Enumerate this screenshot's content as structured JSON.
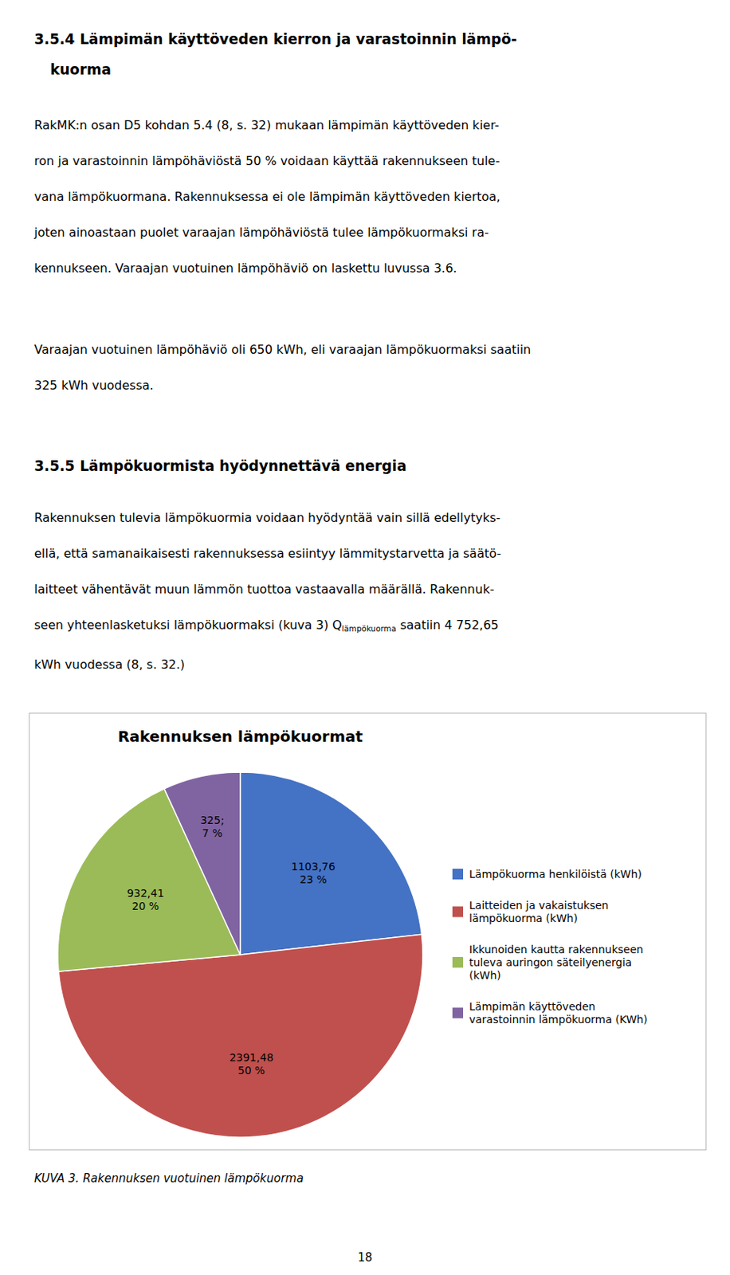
{
  "page_text": [
    {
      "heading": [
        "3.5.4 Lämpimän käyttöveden kierron ja varastoinnin lämpö-",
        "kuorma"
      ]
    },
    {
      "paragraph": [
        "RakMK:n osan D5 kohdan 5.4 (8, s. 32) mukaan lämpimän käyttöveden kier-",
        "ron ja varastoinnin lämpöhäviöstä 50 % voidaan käyttää rakennukseen tule-",
        "vana lämpökuormana. Rakennuksessa ei ole lämpimän käyttöveden kiertoa,",
        "joten ainoastaan puolet varaajan lämpöhäviöstä tulee lämpökuormaksi ra-",
        "kennukseen. Varaajan vuotuinen lämpöhäviö on laskettu luvussa 3.6."
      ]
    },
    {
      "paragraph": [
        "Varaajan vuotuinen lämpöhäviö oli 650 kWh, eli varaajan lämpökuormaksi saatiin",
        "325 kWh vuodessa."
      ]
    },
    {
      "heading": [
        "3.5.5 Lämpökuormista hyödynnettävä energia"
      ]
    },
    {
      "paragraph": [
        "Rakennuksen tulevia lämpökuormia voidaan hyödyntää vain sillä edellytyks-",
        "ellä, että samanaikaisesti rakennuksessa esiintyy lämmitystarvetta ja säätö-",
        "laitteet vähentävät muun lämmön tuottoa vastaavalla määrällä. Rakennuk-",
        [
          {
            "text": "seen yhteenlasketuksi lämpökuormaksi (kuva 3) Q"
          },
          {
            "sub": "lämpökuorma"
          },
          {
            "text": " saatiin 4 752,65"
          }
        ],
        "kWh vuodessa (8, s. 32.)"
      ]
    }
  ],
  "caption": "KUVA 3. Rakennuksen vuotuinen lämpökuorma",
  "page_number": 18,
  "chart_data": {
    "type": "pie",
    "title": "Rakennuksen lämpökuormat",
    "categories": [
      "Lämpökuorma henkilöistä (kWh)",
      "Laitteiden ja vakaistuksen\nlämpökuorma (kWh)",
      "Ikkunoiden kautta rakennukseen\ntuleva auringon säteilyenergia\n(kWh)",
      "Lämpimän käyttöveden\nvarastoinnin lämpökuorma (KWh)"
    ],
    "values": [
      1103.76,
      2391.48,
      932.41,
      325.0
    ],
    "value_labels": [
      "1103,76\n23 %",
      "2391,48\n50 %",
      "932,41\n20 %",
      "325;\n7 %"
    ],
    "colors": [
      "#4472C4",
      "#C0504D",
      "#9BBB59",
      "#8064A2"
    ],
    "data_labels": true,
    "legend": "right"
  }
}
